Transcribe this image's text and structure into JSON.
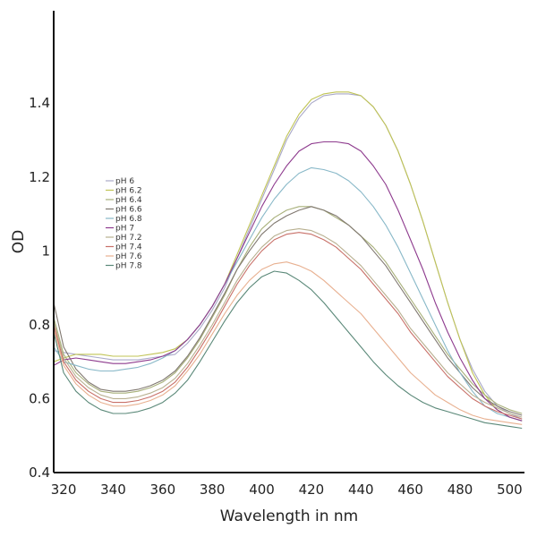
{
  "chart_data": {
    "type": "line",
    "xlabel": "Wavelength in nm",
    "ylabel": "OD",
    "xlim": [
      316,
      506
    ],
    "ylim": [
      0.4,
      1.65
    ],
    "xticks": [
      "320",
      "340",
      "360",
      "380",
      "400",
      "420",
      "440",
      "460",
      "480",
      "500"
    ],
    "yticks": [
      "0.4",
      "0.6",
      "0.8",
      "1",
      "1.2",
      "1.4"
    ],
    "grid": false,
    "legend_position": "left",
    "x": [
      316,
      320,
      325,
      330,
      335,
      340,
      345,
      350,
      355,
      360,
      365,
      370,
      375,
      380,
      385,
      390,
      395,
      400,
      405,
      410,
      415,
      420,
      425,
      430,
      435,
      440,
      445,
      450,
      455,
      460,
      465,
      470,
      475,
      480,
      485,
      490,
      495,
      500,
      505
    ],
    "series": [
      {
        "name": "pH 6",
        "color": "#a9a9c8",
        "values": [
          0.73,
          0.725,
          0.72,
          0.715,
          0.71,
          0.705,
          0.705,
          0.705,
          0.71,
          0.715,
          0.72,
          0.75,
          0.79,
          0.84,
          0.9,
          0.98,
          1.06,
          1.14,
          1.22,
          1.3,
          1.36,
          1.4,
          1.42,
          1.425,
          1.425,
          1.42,
          1.39,
          1.34,
          1.27,
          1.18,
          1.08,
          0.97,
          0.86,
          0.76,
          0.68,
          0.62,
          0.58,
          0.56,
          0.545
        ]
      },
      {
        "name": "pH 6.2",
        "color": "#c0c455",
        "values": [
          0.7,
          0.71,
          0.72,
          0.72,
          0.72,
          0.715,
          0.715,
          0.715,
          0.72,
          0.725,
          0.735,
          0.76,
          0.8,
          0.85,
          0.91,
          0.99,
          1.07,
          1.15,
          1.23,
          1.31,
          1.37,
          1.41,
          1.425,
          1.43,
          1.43,
          1.42,
          1.39,
          1.34,
          1.27,
          1.18,
          1.08,
          0.97,
          0.86,
          0.76,
          0.67,
          0.61,
          0.57,
          0.55,
          0.54
        ]
      },
      {
        "name": "pH 6.4",
        "color": "#a8b07a",
        "values": [
          0.82,
          0.72,
          0.67,
          0.64,
          0.62,
          0.615,
          0.615,
          0.62,
          0.63,
          0.645,
          0.67,
          0.71,
          0.76,
          0.82,
          0.88,
          0.95,
          1.01,
          1.06,
          1.09,
          1.11,
          1.12,
          1.12,
          1.11,
          1.09,
          1.07,
          1.04,
          1.01,
          0.97,
          0.92,
          0.87,
          0.82,
          0.77,
          0.72,
          0.68,
          0.64,
          0.61,
          0.585,
          0.57,
          0.56
        ]
      },
      {
        "name": "pH 6.6",
        "color": "#807870",
        "values": [
          0.86,
          0.74,
          0.68,
          0.645,
          0.625,
          0.62,
          0.62,
          0.625,
          0.635,
          0.65,
          0.675,
          0.715,
          0.765,
          0.825,
          0.885,
          0.95,
          1.0,
          1.045,
          1.075,
          1.095,
          1.11,
          1.12,
          1.11,
          1.095,
          1.07,
          1.04,
          1.0,
          0.96,
          0.91,
          0.86,
          0.81,
          0.76,
          0.71,
          0.67,
          0.63,
          0.6,
          0.58,
          0.565,
          0.555
        ]
      },
      {
        "name": "pH 6.8",
        "color": "#88b8c8",
        "values": [
          0.74,
          0.7,
          0.69,
          0.68,
          0.675,
          0.675,
          0.68,
          0.685,
          0.695,
          0.71,
          0.73,
          0.76,
          0.8,
          0.85,
          0.91,
          0.97,
          1.03,
          1.09,
          1.14,
          1.18,
          1.21,
          1.225,
          1.22,
          1.21,
          1.19,
          1.16,
          1.12,
          1.07,
          1.01,
          0.94,
          0.87,
          0.8,
          0.73,
          0.67,
          0.62,
          0.58,
          0.56,
          0.55,
          0.54
        ]
      },
      {
        "name": "pH 7",
        "color": "#8e3b8e",
        "values": [
          0.69,
          0.705,
          0.71,
          0.705,
          0.7,
          0.695,
          0.695,
          0.7,
          0.705,
          0.715,
          0.73,
          0.76,
          0.8,
          0.85,
          0.91,
          0.98,
          1.05,
          1.12,
          1.18,
          1.23,
          1.27,
          1.29,
          1.295,
          1.295,
          1.29,
          1.27,
          1.23,
          1.18,
          1.11,
          1.03,
          0.95,
          0.86,
          0.78,
          0.71,
          0.65,
          0.6,
          0.57,
          0.55,
          0.54
        ]
      },
      {
        "name": "pH 7.2",
        "color": "#b8b090",
        "values": [
          0.81,
          0.71,
          0.66,
          0.63,
          0.61,
          0.6,
          0.6,
          0.605,
          0.615,
          0.63,
          0.655,
          0.695,
          0.745,
          0.8,
          0.86,
          0.92,
          0.97,
          1.01,
          1.04,
          1.055,
          1.06,
          1.055,
          1.04,
          1.02,
          0.99,
          0.96,
          0.92,
          0.88,
          0.84,
          0.79,
          0.75,
          0.71,
          0.67,
          0.64,
          0.61,
          0.59,
          0.575,
          0.56,
          0.55
        ]
      },
      {
        "name": "pH 7.4",
        "color": "#c87068",
        "values": [
          0.8,
          0.7,
          0.65,
          0.62,
          0.6,
          0.59,
          0.59,
          0.595,
          0.605,
          0.62,
          0.645,
          0.685,
          0.735,
          0.79,
          0.85,
          0.91,
          0.96,
          1.0,
          1.03,
          1.045,
          1.05,
          1.045,
          1.03,
          1.01,
          0.98,
          0.95,
          0.91,
          0.87,
          0.83,
          0.78,
          0.74,
          0.7,
          0.66,
          0.63,
          0.6,
          0.58,
          0.565,
          0.555,
          0.545
        ]
      },
      {
        "name": "pH 7.6",
        "color": "#e8b090",
        "values": [
          0.79,
          0.69,
          0.64,
          0.61,
          0.59,
          0.58,
          0.58,
          0.585,
          0.595,
          0.61,
          0.635,
          0.675,
          0.72,
          0.775,
          0.83,
          0.88,
          0.92,
          0.95,
          0.965,
          0.97,
          0.96,
          0.945,
          0.92,
          0.89,
          0.86,
          0.83,
          0.79,
          0.75,
          0.71,
          0.67,
          0.64,
          0.61,
          0.59,
          0.57,
          0.555,
          0.545,
          0.54,
          0.535,
          0.53
        ]
      },
      {
        "name": "pH 7.8",
        "color": "#5a8878",
        "values": [
          0.78,
          0.67,
          0.62,
          0.59,
          0.57,
          0.56,
          0.56,
          0.565,
          0.575,
          0.59,
          0.615,
          0.65,
          0.7,
          0.755,
          0.81,
          0.86,
          0.9,
          0.93,
          0.945,
          0.94,
          0.92,
          0.895,
          0.86,
          0.82,
          0.78,
          0.74,
          0.7,
          0.665,
          0.635,
          0.61,
          0.59,
          0.575,
          0.565,
          0.555,
          0.545,
          0.535,
          0.53,
          0.525,
          0.52
        ]
      }
    ]
  }
}
